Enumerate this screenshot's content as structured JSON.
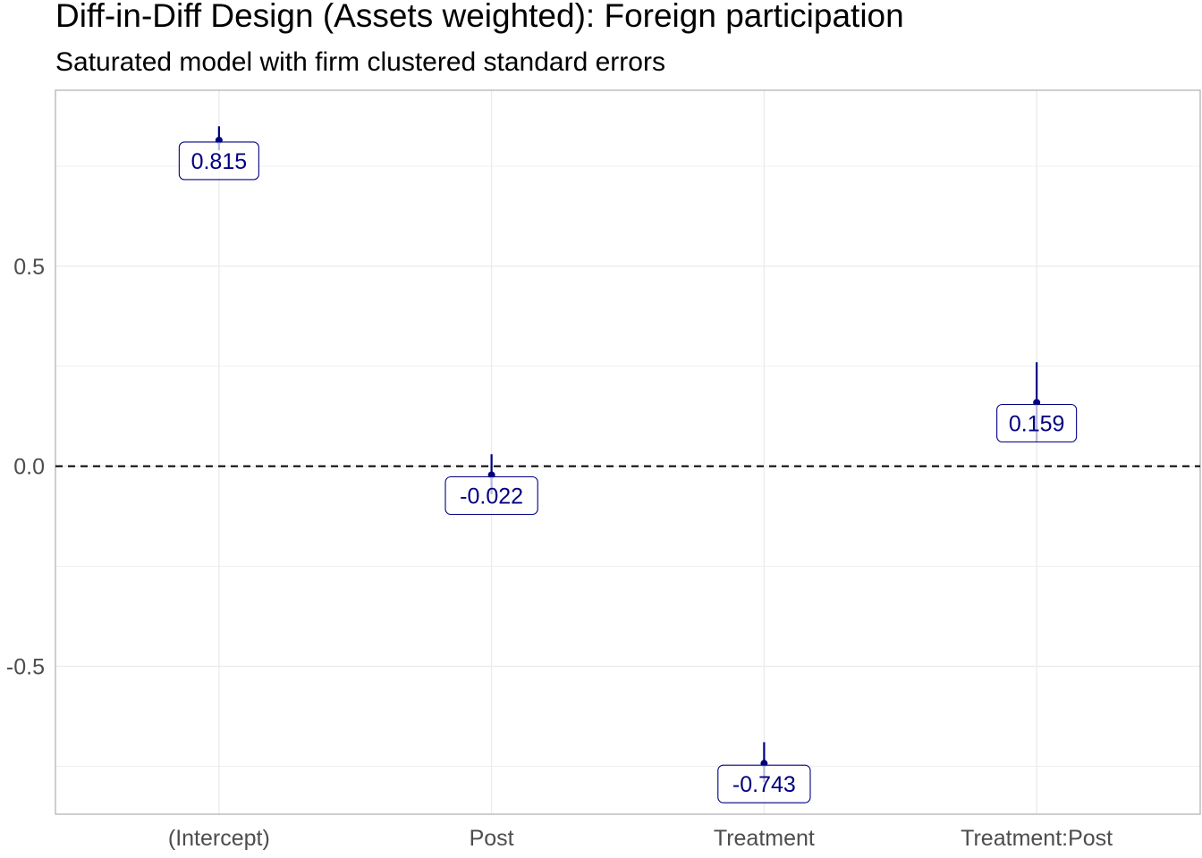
{
  "chart_data": {
    "type": "scatter",
    "title": "Diff-in-Diff Design (Assets weighted): Foreign participation",
    "subtitle": "Saturated model with firm clustered standard errors",
    "xlabel": "",
    "ylabel": "",
    "categories": [
      "(Intercept)",
      "Post",
      "Treatment",
      "Treatment:Post"
    ],
    "values": [
      0.815,
      -0.022,
      -0.743,
      0.159
    ],
    "value_labels": [
      "0.815",
      "-0.022",
      "-0.743",
      "0.159"
    ],
    "error_bars": [
      {
        "low": 0.79,
        "high": 0.85
      },
      {
        "low": -0.07,
        "high": 0.03
      },
      {
        "low": -0.79,
        "high": -0.69
      },
      {
        "low": 0.06,
        "high": 0.26
      }
    ],
    "ylim": [
      -0.87,
      0.94
    ],
    "y_ticks": [
      -0.5,
      0.0,
      0.5
    ],
    "y_tick_labels": [
      "-0.5",
      "0.0",
      "0.5"
    ],
    "reference_line": {
      "y": 0,
      "style": "dashed"
    },
    "grid": true,
    "colors": {
      "point": "#000080",
      "label_text": "#000080",
      "label_border": "#000080",
      "grid": "#ebebeb",
      "panel_border": "#b3b3b3",
      "reference_line": "#000000"
    }
  }
}
